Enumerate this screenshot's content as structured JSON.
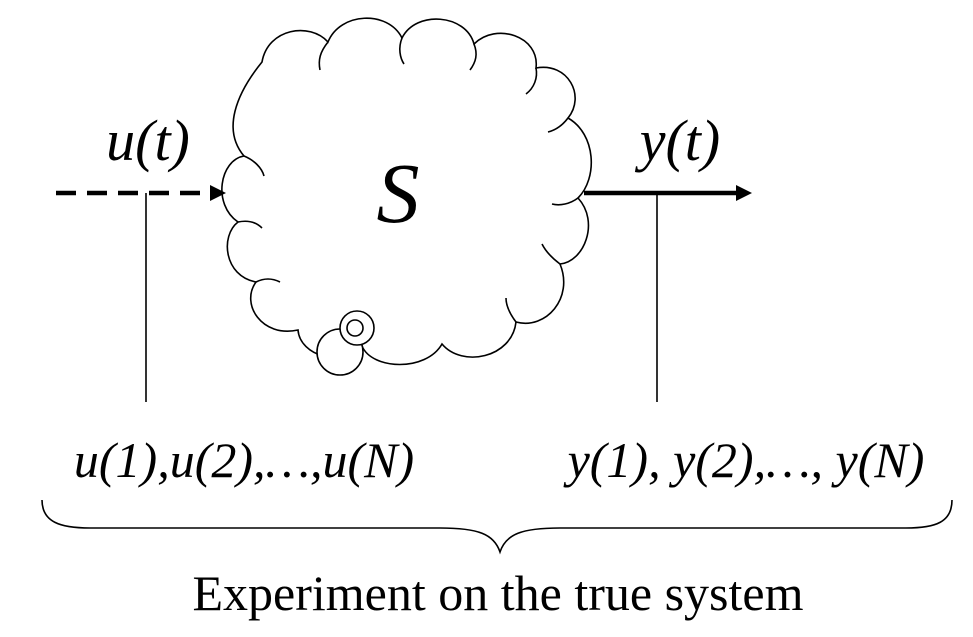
{
  "system": {
    "label": "S"
  },
  "input": {
    "signal_label": "u(t)",
    "samples_label": "u(1),u(2),…,u(N)"
  },
  "output": {
    "signal_label": "y(t)",
    "samples_label": "y(1), y(2),…, y(N)"
  },
  "caption": {
    "text": "Experiment on the true system"
  }
}
